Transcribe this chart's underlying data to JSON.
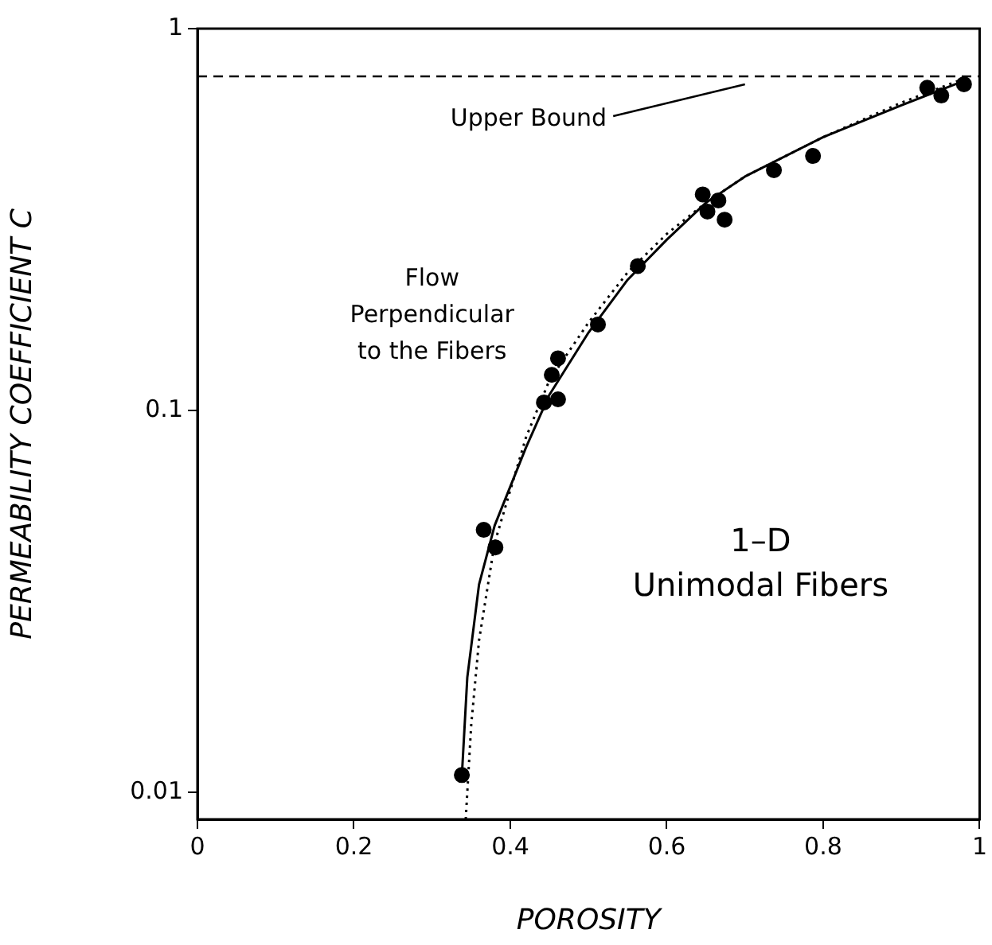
{
  "chart_data": {
    "type": "scatter",
    "xlabel": "POROSITY",
    "ylabel": "PERMEABILITY COEFFICIENT C",
    "log": "y",
    "xlim": [
      0,
      1
    ],
    "ylim": [
      0.0085,
      1
    ],
    "xticks": [
      0,
      0.2,
      0.4,
      0.6,
      0.8,
      1
    ],
    "yticks": [
      0.01,
      0.1,
      1
    ],
    "grid": false,
    "legend": false,
    "series": [
      {
        "type": "scatter",
        "color": "#000000",
        "marker": "circle",
        "x": [
          0.338,
          0.366,
          0.381,
          0.443,
          0.461,
          0.453,
          0.461,
          0.512,
          0.563,
          0.646,
          0.652,
          0.666,
          0.674,
          0.737,
          0.787,
          0.933,
          0.951,
          0.98
        ],
        "values": [
          0.0111,
          0.0487,
          0.0438,
          0.105,
          0.107,
          0.124,
          0.137,
          0.168,
          0.239,
          0.368,
          0.332,
          0.355,
          0.316,
          0.426,
          0.464,
          0.7,
          0.668,
          0.715
        ]
      },
      {
        "type": "line",
        "color": "#000000",
        "marker": "none",
        "line_style": "solid",
        "x": [
          0.338,
          0.345,
          0.36,
          0.38,
          0.42,
          0.45,
          0.5,
          0.55,
          0.6,
          0.65,
          0.7,
          0.8,
          0.9,
          0.98
        ],
        "values": [
          0.011,
          0.02,
          0.035,
          0.05,
          0.08,
          0.11,
          0.16,
          0.22,
          0.28,
          0.35,
          0.41,
          0.52,
          0.63,
          0.73
        ]
      },
      {
        "type": "line",
        "color": "#000000",
        "marker": "none",
        "line_style": "dotted",
        "x": [
          0.343,
          0.35,
          0.36,
          0.38,
          0.42,
          0.45,
          0.5,
          0.55,
          0.6,
          0.65,
          0.7,
          0.8,
          0.9,
          0.98
        ],
        "values": [
          0.0085,
          0.015,
          0.025,
          0.045,
          0.085,
          0.12,
          0.17,
          0.23,
          0.29,
          0.35,
          0.41,
          0.52,
          0.64,
          0.74
        ]
      }
    ],
    "ref_lines": [
      {
        "axis": "y",
        "value": 0.75,
        "label": "Upper Bound",
        "line_style": "dashed"
      }
    ],
    "annotations": [
      "Flow\nPerpendicular\nto the Fibers",
      "1–D\nUnimodal Fibers"
    ]
  }
}
